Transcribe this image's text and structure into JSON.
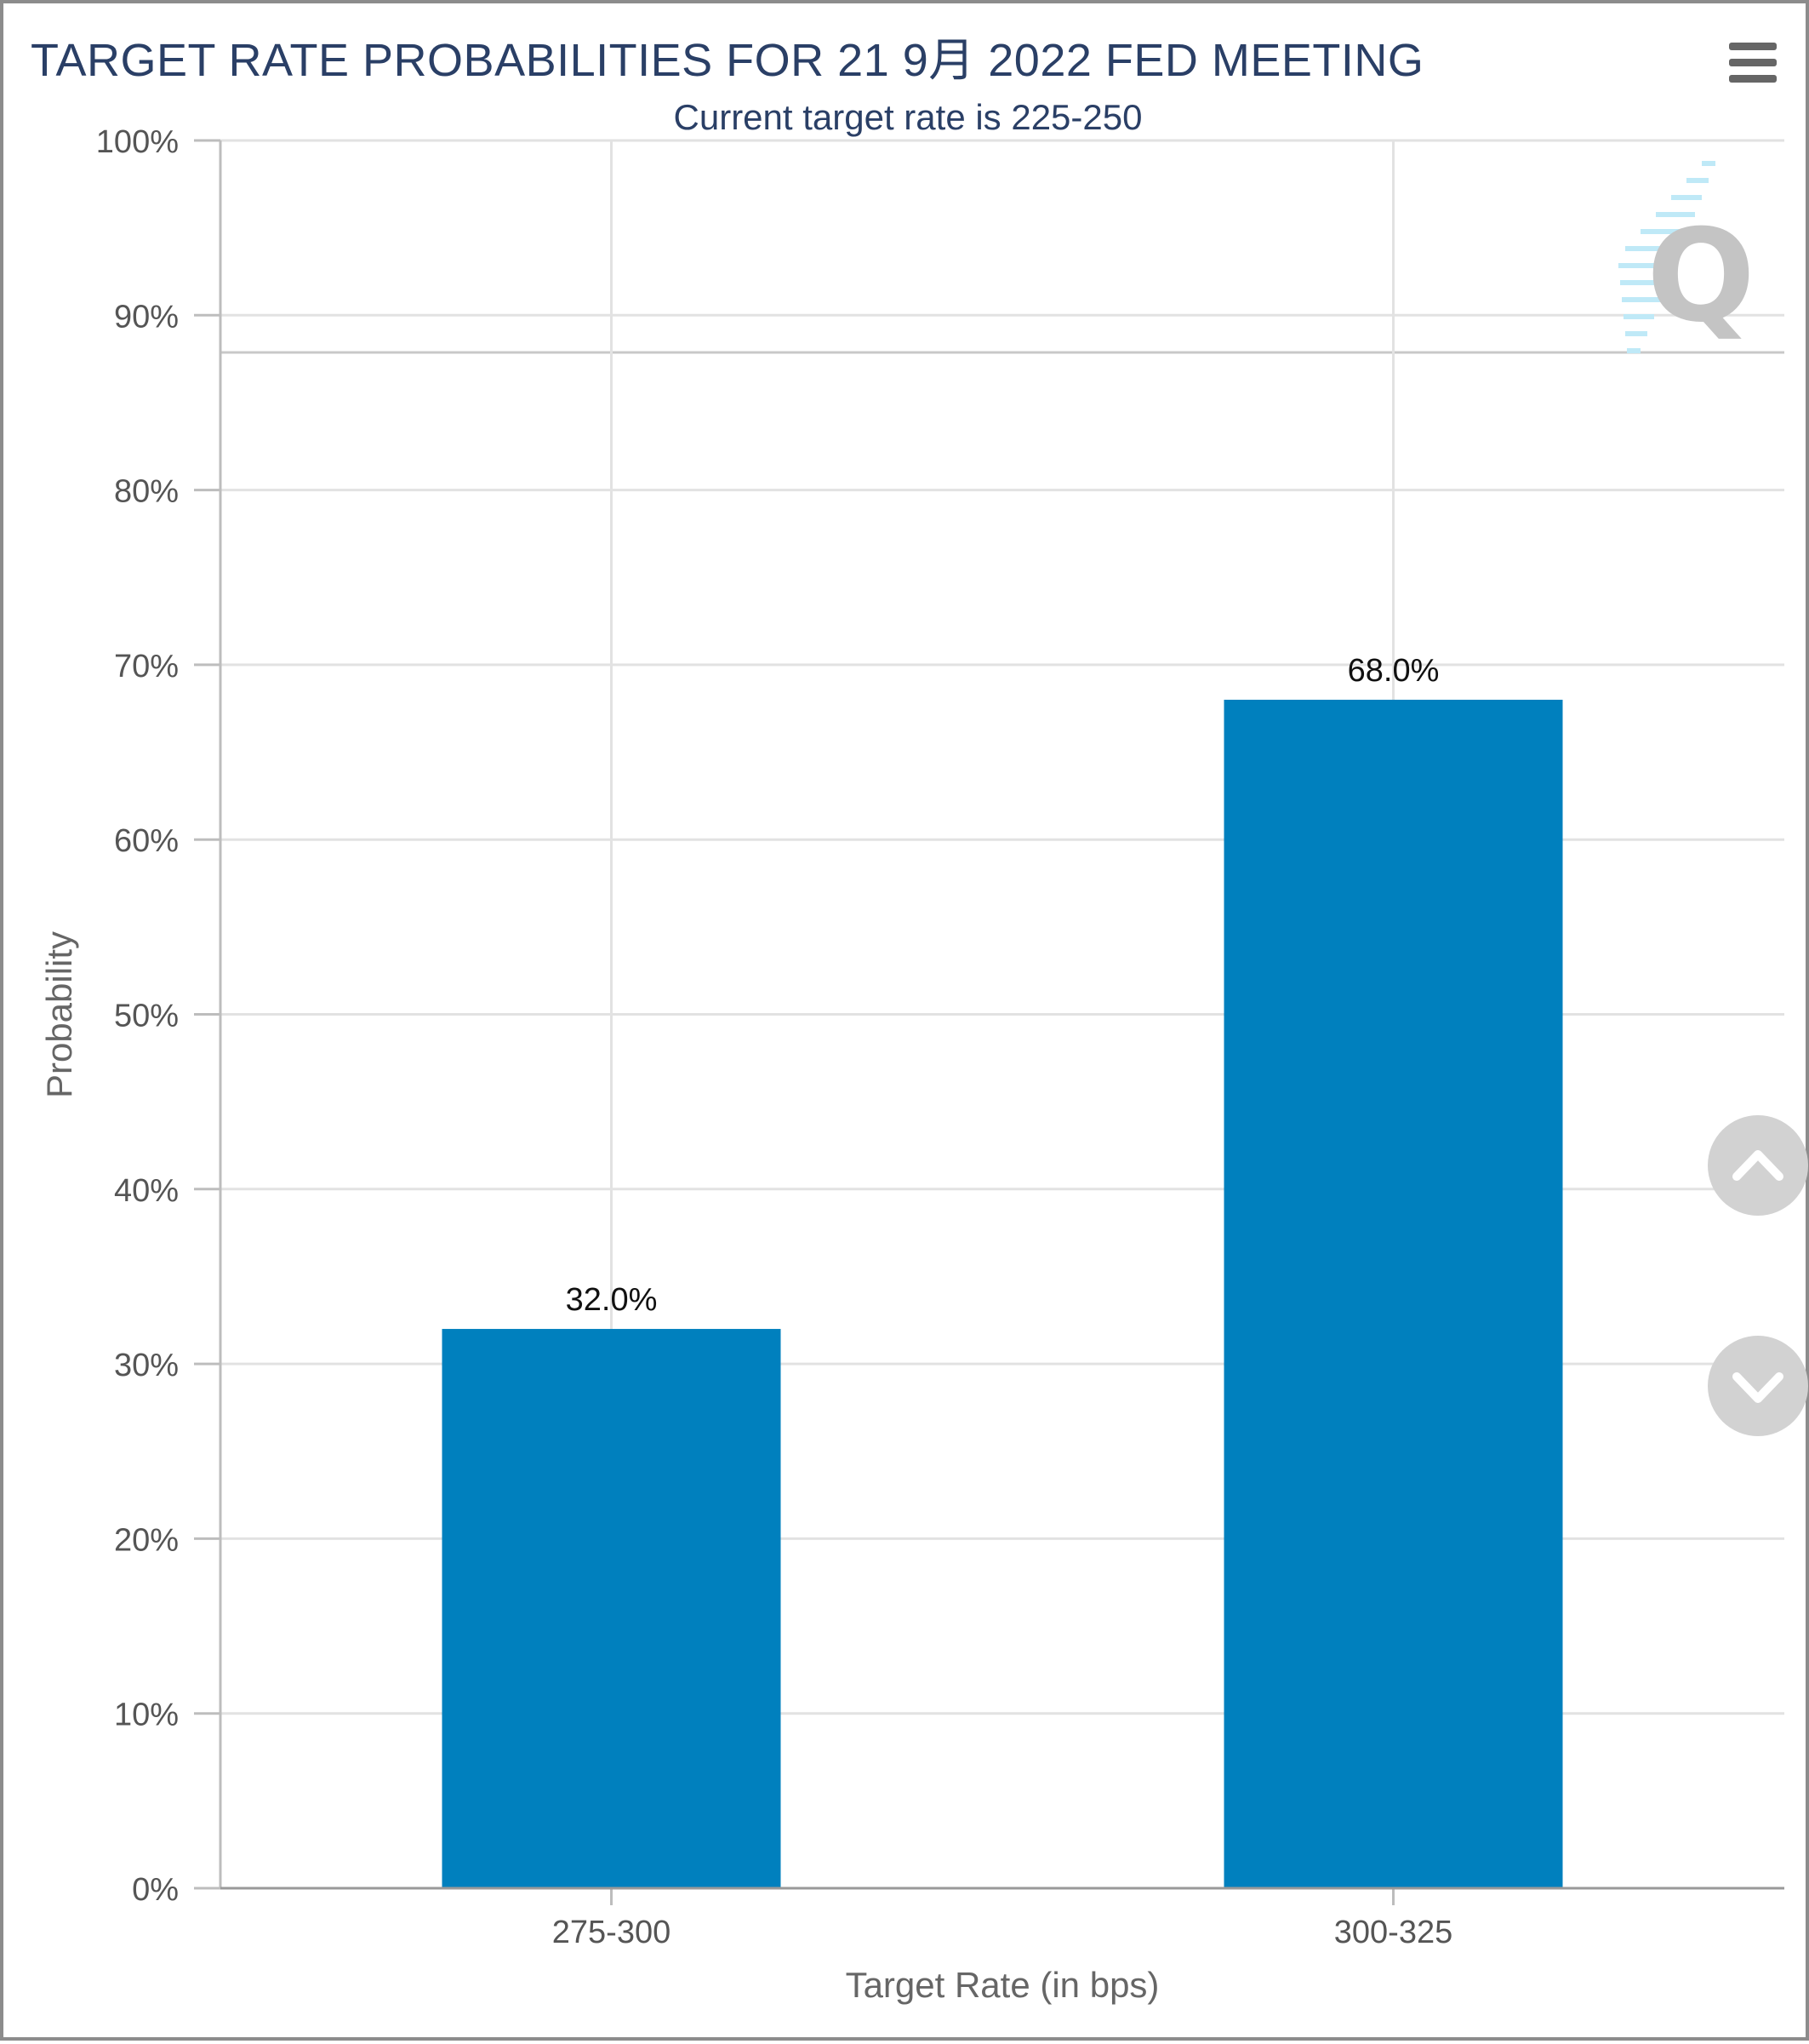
{
  "chart_data": {
    "type": "bar",
    "title": "TARGET RATE PROBABILITIES FOR 21 9月 2022 FED MEETING",
    "subtitle": "Current target rate is 225-250",
    "categories": [
      "275-300",
      "300-325"
    ],
    "values": [
      32.0,
      68.0
    ],
    "data_labels": [
      "32.0%",
      "68.0%"
    ],
    "xlabel": "Target Rate (in bps)",
    "ylabel": "Probability",
    "ylim": [
      0,
      100
    ],
    "yticks": [
      "0%",
      "10%",
      "20%",
      "30%",
      "40%",
      "50%",
      "60%",
      "70%",
      "80%",
      "90%",
      "100%"
    ],
    "grid": true,
    "legend": "none",
    "bar_color": "#0080be"
  },
  "controls": {
    "menu_icon": "hamburger-menu-icon",
    "scroll_up_icon": "chevron-up-icon",
    "scroll_down_icon": "chevron-down-icon"
  }
}
